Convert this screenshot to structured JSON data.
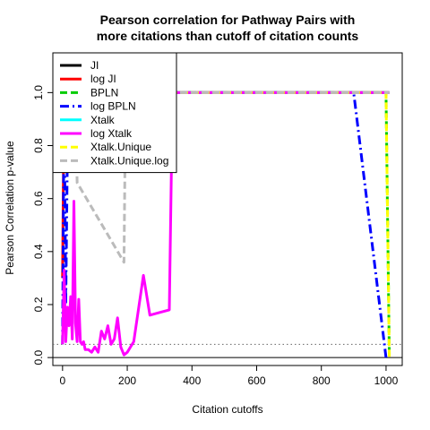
{
  "chart_data": {
    "type": "line",
    "title": [
      "Pearson correlation for Pathway Pairs with",
      "more citations than cutoff of citation counts"
    ],
    "xlabel": "Citation cutoffs",
    "ylabel": "Pearson Correlation p-value",
    "xlim": [
      -30,
      1050
    ],
    "ylim": [
      -0.03,
      1.15
    ],
    "x_ticks": [
      0,
      200,
      400,
      600,
      800,
      1000
    ],
    "y_ticks": [
      0.0,
      0.2,
      0.4,
      0.6,
      0.8,
      1.0
    ],
    "y_tick_labels": [
      "0.0",
      "0.2",
      "0.4",
      "0.6",
      "0.8",
      "1.0"
    ],
    "hlines": [
      {
        "y": 0.0,
        "color": "#000000",
        "dash": "solid"
      },
      {
        "y": 0.05,
        "color": "#666666",
        "dash": "dotted"
      }
    ],
    "legend_position": "top-left",
    "series": [
      {
        "name": "JI",
        "color": "#000000",
        "dash": "solid",
        "x": [
          0,
          1010
        ],
        "y": [
          1.0,
          1.0
        ]
      },
      {
        "name": "log JI",
        "color": "#ff0000",
        "dash": "solid",
        "x": [
          0,
          5,
          10,
          340,
          1010
        ],
        "y": [
          0.3,
          1.0,
          1.0,
          1.0,
          1.0
        ]
      },
      {
        "name": "BPLN",
        "color": "#00cc00",
        "dash": "dashed",
        "x": [
          0,
          5,
          340,
          1000,
          1010
        ],
        "y": [
          0.7,
          1.0,
          1.0,
          1.0,
          0.0
        ]
      },
      {
        "name": "log BPLN",
        "color": "#0000ff",
        "dash": "dashdot",
        "x": [
          0,
          5,
          10,
          15,
          20,
          340,
          900,
          1000
        ],
        "y": [
          0.05,
          1.0,
          0.2,
          0.8,
          1.0,
          1.0,
          1.0,
          0.0
        ]
      },
      {
        "name": "Xtalk",
        "color": "#00ffff",
        "dash": "solid",
        "x": [
          0,
          340,
          1010
        ],
        "y": [
          1.0,
          1.0,
          1.0
        ]
      },
      {
        "name": "log Xtalk",
        "color": "#ff00ff",
        "dash": "solid",
        "x": [
          0,
          5,
          10,
          15,
          20,
          25,
          30,
          35,
          40,
          45,
          50,
          55,
          60,
          65,
          70,
          80,
          90,
          100,
          110,
          120,
          130,
          140,
          150,
          160,
          170,
          180,
          190,
          200,
          220,
          250,
          270,
          300,
          330,
          340,
          1010
        ],
        "y": [
          0.05,
          0.33,
          0.06,
          0.19,
          0.12,
          0.23,
          0.07,
          0.59,
          0.13,
          0.06,
          0.22,
          0.06,
          0.05,
          0.06,
          0.03,
          0.03,
          0.02,
          0.04,
          0.02,
          0.1,
          0.07,
          0.12,
          0.05,
          0.07,
          0.15,
          0.04,
          0.01,
          0.02,
          0.06,
          0.31,
          0.16,
          0.17,
          0.18,
          1.0,
          1.0
        ]
      },
      {
        "name": "Xtalk.Unique",
        "color": "#ffff00",
        "dash": "dashed",
        "x": [
          0,
          340,
          1000,
          1010
        ],
        "y": [
          1.0,
          1.0,
          1.0,
          0.0
        ]
      },
      {
        "name": "Xtalk.Unique.log",
        "color": "#bbbbbb",
        "dash": "dashed",
        "x": [
          0,
          40,
          45,
          190,
          195,
          200,
          340,
          1010
        ],
        "y": [
          1.0,
          1.0,
          0.66,
          0.36,
          1.0,
          1.0,
          1.0,
          1.0
        ]
      }
    ]
  }
}
